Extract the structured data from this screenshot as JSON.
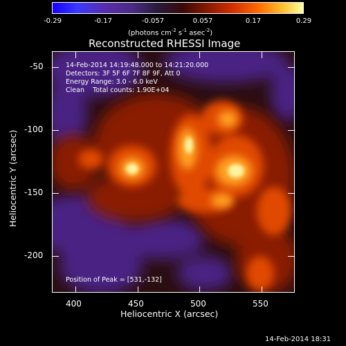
{
  "colorbar": {
    "ticks": [
      "-0.29",
      "-0.17",
      "-0.057",
      "0.057",
      "0.17",
      "0.29"
    ],
    "units_html": "(photons cm<sup>-2</sup> s<sup>-1</sup> asec<sup>-2</sup>)"
  },
  "title": "Reconstructed RHESSI Image",
  "annotations": {
    "time_range": "14-Feb-2014 14:19:48.000 to 14:21:20.000",
    "detectors": "Detectors: 3F 5F 6F 7F 8F 9F, Att 0",
    "energy_range": "Energy Range: 3.0 - 6.0 keV",
    "algorithm": "Clean    Total counts: 1.90E+04",
    "peak_position": "Position of Peak = [531,-132]"
  },
  "x_axis": {
    "label": "Heliocentric X (arcsec)",
    "ticks": [
      "400",
      "450",
      "500",
      "550"
    ]
  },
  "y_axis": {
    "label": "Heliocentric Y (arcsec)",
    "ticks": [
      "-50",
      "-100",
      "-150",
      "-200"
    ]
  },
  "timestamp": "14-Feb-2014 18:31",
  "colors": {
    "background": "#000000",
    "positive_hot": "#ffe060",
    "mid": "#c02000",
    "negative": "#5a2aa0"
  }
}
